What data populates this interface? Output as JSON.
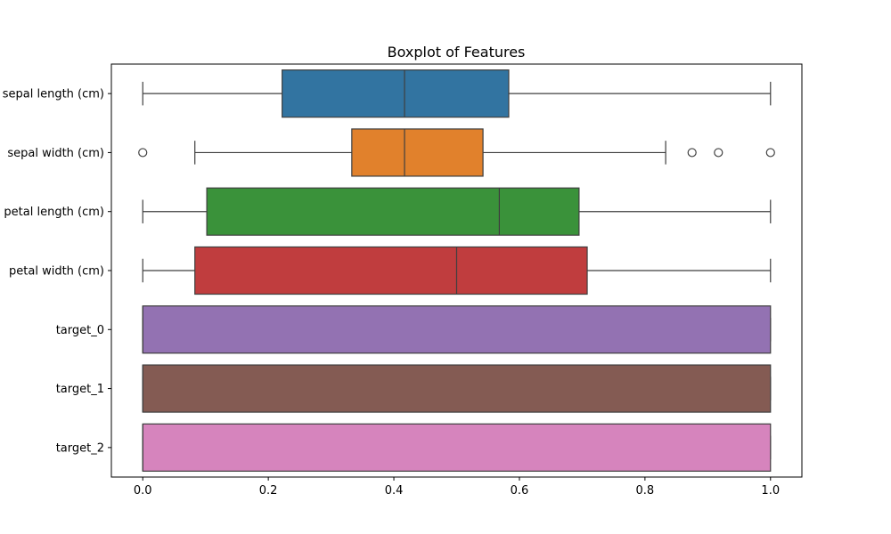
{
  "chart_data": {
    "type": "boxplot",
    "orientation": "horizontal",
    "title": "Boxplot of Features",
    "xlabel": "",
    "ylabel": "",
    "xlim": [
      -0.05,
      1.05
    ],
    "xticks": [
      0.0,
      0.2,
      0.4,
      0.6,
      0.8,
      1.0
    ],
    "xtick_labels": [
      "0.0",
      "0.2",
      "0.4",
      "0.6",
      "0.8",
      "1.0"
    ],
    "grid": false,
    "series": [
      {
        "name": "sepal length (cm)",
        "whisker_low": 0.0,
        "q1": 0.222,
        "median": 0.417,
        "q3": 0.583,
        "whisker_high": 1.0,
        "outliers": [],
        "color": "#3274a1"
      },
      {
        "name": "sepal width (cm)",
        "whisker_low": 0.083,
        "q1": 0.333,
        "median": 0.417,
        "q3": 0.542,
        "whisker_high": 0.833,
        "outliers": [
          0.0,
          0.875,
          0.917,
          1.0
        ],
        "color": "#e1812c"
      },
      {
        "name": "petal length (cm)",
        "whisker_low": 0.0,
        "q1": 0.102,
        "median": 0.568,
        "q3": 0.695,
        "whisker_high": 1.0,
        "outliers": [],
        "color": "#3a923a"
      },
      {
        "name": "petal width (cm)",
        "whisker_low": 0.0,
        "q1": 0.083,
        "median": 0.5,
        "q3": 0.708,
        "whisker_high": 1.0,
        "outliers": [],
        "color": "#c03d3e"
      },
      {
        "name": "target_0",
        "whisker_low": 0.0,
        "q1": 0.0,
        "median": 0.0,
        "q3": 1.0,
        "whisker_high": 1.0,
        "outliers": [],
        "color": "#9372b2"
      },
      {
        "name": "target_1",
        "whisker_low": 0.0,
        "q1": 0.0,
        "median": 0.0,
        "q3": 1.0,
        "whisker_high": 1.0,
        "outliers": [],
        "color": "#845b53"
      },
      {
        "name": "target_2",
        "whisker_low": 0.0,
        "q1": 0.0,
        "median": 0.0,
        "q3": 1.0,
        "whisker_high": 1.0,
        "outliers": [],
        "color": "#d684bd"
      }
    ]
  }
}
